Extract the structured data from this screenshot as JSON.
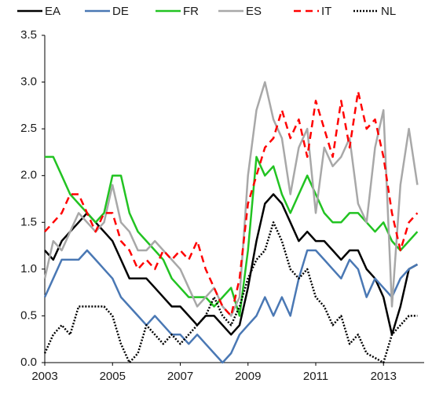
{
  "chart_data": {
    "type": "line",
    "x": [
      2003,
      2003.25,
      2003.5,
      2003.75,
      2004,
      2004.25,
      2004.5,
      2004.75,
      2005,
      2005.25,
      2005.5,
      2005.75,
      2006,
      2006.25,
      2006.5,
      2006.75,
      2007,
      2007.25,
      2007.5,
      2007.75,
      2008,
      2008.25,
      2008.5,
      2008.75,
      2009,
      2009.25,
      2009.5,
      2009.75,
      2010,
      2010.25,
      2010.5,
      2010.75,
      2011,
      2011.25,
      2011.5,
      2011.75,
      2012,
      2012.25,
      2012.5,
      2012.75,
      2013,
      2013.25,
      2013.5,
      2013.75,
      2014
    ],
    "series": [
      {
        "name": "EA",
        "color": "#000000",
        "line_style": "solid",
        "values": [
          1.2,
          1.1,
          1.3,
          1.4,
          1.5,
          1.6,
          1.5,
          1.4,
          1.3,
          1.1,
          0.9,
          0.9,
          0.9,
          0.8,
          0.7,
          0.6,
          0.6,
          0.5,
          0.4,
          0.5,
          0.5,
          0.4,
          0.3,
          0.4,
          0.8,
          1.3,
          1.7,
          1.8,
          1.7,
          1.5,
          1.3,
          1.4,
          1.3,
          1.3,
          1.2,
          1.1,
          1.2,
          1.2,
          1.0,
          0.9,
          0.7,
          0.3,
          0.6,
          1.0,
          1.05
        ]
      },
      {
        "name": "DE",
        "color": "#4a78b4",
        "line_style": "solid",
        "values": [
          0.7,
          0.9,
          1.1,
          1.1,
          1.1,
          1.2,
          1.1,
          1.0,
          0.9,
          0.7,
          0.6,
          0.5,
          0.4,
          0.5,
          0.4,
          0.3,
          0.3,
          0.2,
          0.3,
          0.2,
          0.1,
          0.0,
          0.1,
          0.3,
          0.4,
          0.5,
          0.7,
          0.5,
          0.7,
          0.5,
          0.9,
          1.2,
          1.2,
          1.1,
          1.0,
          0.9,
          1.1,
          1.0,
          0.7,
          0.9,
          0.8,
          0.7,
          0.9,
          1.0,
          1.05
        ]
      },
      {
        "name": "FR",
        "color": "#22c322",
        "line_style": "solid",
        "values": [
          2.2,
          2.2,
          2.0,
          1.8,
          1.7,
          1.6,
          1.5,
          1.6,
          2.0,
          2.0,
          1.6,
          1.4,
          1.3,
          1.2,
          1.1,
          0.9,
          0.8,
          0.7,
          0.7,
          0.7,
          0.6,
          0.7,
          0.8,
          0.5,
          1.2,
          2.2,
          2.0,
          2.1,
          1.8,
          1.6,
          1.8,
          2.0,
          1.8,
          1.6,
          1.5,
          1.5,
          1.6,
          1.6,
          1.5,
          1.4,
          1.5,
          1.3,
          1.2,
          1.3,
          1.4
        ]
      },
      {
        "name": "ES",
        "color": "#a8a8a8",
        "line_style": "solid",
        "values": [
          0.9,
          1.3,
          1.2,
          1.4,
          1.6,
          1.5,
          1.4,
          1.5,
          1.9,
          1.5,
          1.4,
          1.2,
          1.2,
          1.3,
          1.2,
          1.1,
          1.0,
          0.8,
          0.6,
          0.7,
          0.8,
          0.6,
          0.5,
          0.7,
          2.0,
          2.7,
          3.0,
          2.6,
          2.4,
          1.8,
          2.3,
          2.5,
          1.6,
          2.3,
          2.1,
          2.2,
          2.4,
          1.7,
          1.5,
          2.3,
          2.7,
          0.6,
          1.9,
          2.5,
          1.9
        ]
      },
      {
        "name": "IT",
        "color": "#ff0000",
        "line_style": "dashed",
        "values": [
          1.4,
          1.5,
          1.6,
          1.8,
          1.8,
          1.6,
          1.4,
          1.6,
          1.6,
          1.3,
          1.2,
          1.0,
          1.1,
          1.0,
          1.2,
          1.1,
          1.2,
          1.1,
          1.3,
          1.0,
          0.8,
          0.6,
          0.5,
          0.9,
          1.7,
          2.0,
          2.3,
          2.4,
          2.7,
          2.4,
          2.6,
          2.2,
          2.8,
          2.5,
          2.2,
          2.8,
          2.3,
          2.9,
          2.5,
          2.6,
          2.2,
          1.6,
          1.2,
          1.5,
          1.6
        ]
      },
      {
        "name": "NL",
        "color": "#000000",
        "line_style": "dotted",
        "values": [
          0.1,
          0.3,
          0.4,
          0.3,
          0.6,
          0.6,
          0.6,
          0.6,
          0.5,
          0.2,
          0.0,
          0.1,
          0.4,
          0.3,
          0.2,
          0.3,
          0.2,
          0.3,
          0.4,
          0.5,
          0.7,
          0.5,
          0.4,
          0.6,
          0.9,
          1.1,
          1.2,
          1.5,
          1.3,
          1.0,
          0.9,
          1.0,
          0.7,
          0.6,
          0.4,
          0.5,
          0.2,
          0.3,
          0.1,
          0.05,
          0.0,
          0.3,
          0.4,
          0.5,
          0.5
        ]
      }
    ],
    "xlim": [
      2003,
      2014.2
    ],
    "xticks": [
      2003,
      2005,
      2007,
      2009,
      2011,
      2013
    ],
    "ylim": [
      0,
      3.5
    ],
    "yticks": [
      {
        "value": 0,
        "label": "0.0"
      },
      {
        "value": 0.5,
        "label": "0.5"
      },
      {
        "value": 1,
        "label": "1.0"
      },
      {
        "value": 1.5,
        "label": "1.5"
      },
      {
        "value": 2,
        "label": "2.0"
      },
      {
        "value": 2.5,
        "label": "2.5"
      },
      {
        "value": 3,
        "label": "3.0"
      },
      {
        "value": 3.5,
        "label": "3.5"
      }
    ],
    "legend": "top",
    "grid": false
  }
}
